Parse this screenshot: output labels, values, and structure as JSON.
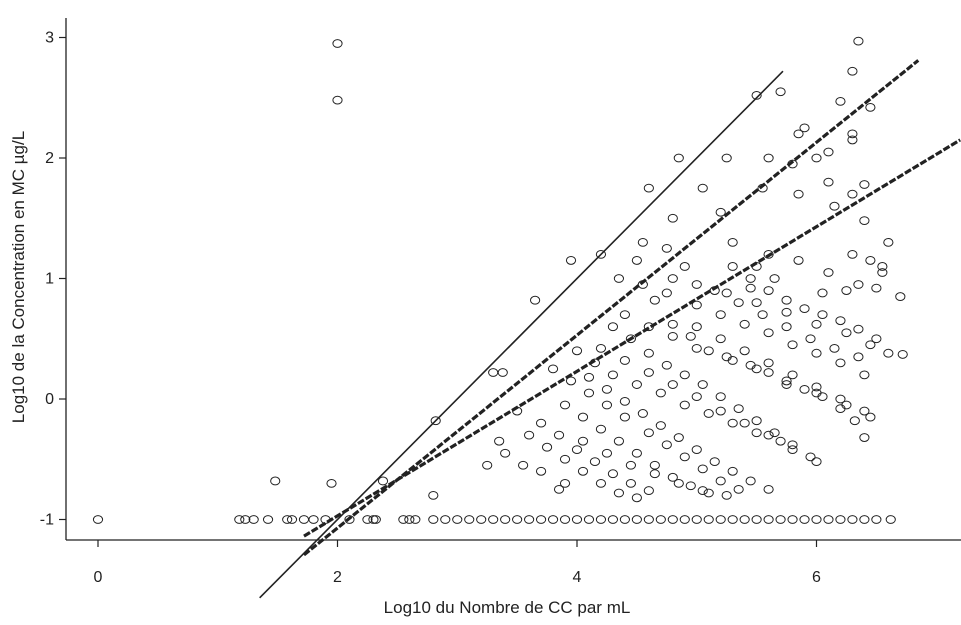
{
  "chart_data": {
    "type": "scatter",
    "title": "",
    "xlabel": "Log10 du Nombre de CC par mL",
    "ylabel": "Log10 de la Concentration en MC µg/L",
    "xlim": [
      -0.8,
      7.2
    ],
    "ylim": [
      -1.17,
      3.17
    ],
    "xticks": [
      0,
      2,
      4,
      6
    ],
    "xtick_labels": [
      "0",
      "2",
      "4",
      "6"
    ],
    "yticks": [
      -1,
      0,
      1,
      2,
      3
    ],
    "ytick_labels": [
      "-1",
      "0",
      "1",
      "2",
      "3"
    ],
    "grid": false,
    "legend": "none",
    "marker": "open-circle",
    "color": "#222222",
    "reference_lines": [
      {
        "style": "solid",
        "slope": 1.0,
        "intercept": -3.0,
        "x_range": [
          1.35,
          5.72
        ]
      },
      {
        "style": "dashed",
        "slope": 0.8,
        "intercept": -2.67,
        "x_range": [
          1.72,
          6.85
        ]
      },
      {
        "style": "dashed",
        "slope": 0.6,
        "intercept": -2.17,
        "x_range": [
          1.72,
          7.2
        ]
      }
    ],
    "points": [
      [
        0.0,
        -1.0
      ],
      [
        1.18,
        -1.0
      ],
      [
        1.23,
        -1.0
      ],
      [
        1.3,
        -1.0
      ],
      [
        1.42,
        -1.0
      ],
      [
        1.58,
        -1.0
      ],
      [
        1.62,
        -1.0
      ],
      [
        1.72,
        -1.0
      ],
      [
        1.8,
        -1.0
      ],
      [
        1.9,
        -1.0
      ],
      [
        2.1,
        -1.0
      ],
      [
        2.25,
        -1.0
      ],
      [
        2.3,
        -1.0
      ],
      [
        2.32,
        -1.0
      ],
      [
        2.55,
        -1.0
      ],
      [
        2.6,
        -1.0
      ],
      [
        2.65,
        -1.0
      ],
      [
        2.8,
        -1.0
      ],
      [
        2.9,
        -1.0
      ],
      [
        3.0,
        -1.0
      ],
      [
        3.1,
        -1.0
      ],
      [
        3.2,
        -1.0
      ],
      [
        3.3,
        -1.0
      ],
      [
        3.4,
        -1.0
      ],
      [
        3.5,
        -1.0
      ],
      [
        3.6,
        -1.0
      ],
      [
        3.7,
        -1.0
      ],
      [
        3.8,
        -1.0
      ],
      [
        3.9,
        -1.0
      ],
      [
        4.0,
        -1.0
      ],
      [
        4.1,
        -1.0
      ],
      [
        4.2,
        -1.0
      ],
      [
        4.3,
        -1.0
      ],
      [
        4.4,
        -1.0
      ],
      [
        4.5,
        -1.0
      ],
      [
        4.6,
        -1.0
      ],
      [
        4.7,
        -1.0
      ],
      [
        4.8,
        -1.0
      ],
      [
        4.9,
        -1.0
      ],
      [
        5.0,
        -1.0
      ],
      [
        5.1,
        -1.0
      ],
      [
        5.2,
        -1.0
      ],
      [
        5.3,
        -1.0
      ],
      [
        5.4,
        -1.0
      ],
      [
        5.5,
        -1.0
      ],
      [
        5.6,
        -1.0
      ],
      [
        5.7,
        -1.0
      ],
      [
        5.8,
        -1.0
      ],
      [
        5.9,
        -1.0
      ],
      [
        6.0,
        -1.0
      ],
      [
        6.1,
        -1.0
      ],
      [
        6.2,
        -1.0
      ],
      [
        6.3,
        -1.0
      ],
      [
        6.4,
        -1.0
      ],
      [
        6.5,
        -1.0
      ],
      [
        6.62,
        -1.0
      ],
      [
        1.48,
        -0.68
      ],
      [
        1.95,
        -0.7
      ],
      [
        2.38,
        -0.68
      ],
      [
        2.0,
        2.95
      ],
      [
        2.0,
        2.48
      ],
      [
        2.8,
        -0.8
      ],
      [
        2.82,
        -0.18
      ],
      [
        3.65,
        0.82
      ],
      [
        3.3,
        0.22
      ],
      [
        3.38,
        0.22
      ],
      [
        3.35,
        -0.35
      ],
      [
        3.4,
        -0.45
      ],
      [
        3.55,
        -0.55
      ],
      [
        3.7,
        -0.6
      ],
      [
        3.85,
        -0.75
      ],
      [
        3.9,
        -0.7
      ],
      [
        3.25,
        -0.55
      ],
      [
        3.95,
        1.15
      ],
      [
        4.2,
        1.2
      ],
      [
        4.35,
        1.0
      ],
      [
        4.5,
        1.15
      ],
      [
        4.55,
        1.3
      ],
      [
        4.6,
        1.75
      ],
      [
        4.8,
        1.5
      ],
      [
        4.75,
        1.25
      ],
      [
        4.9,
        1.1
      ],
      [
        5.05,
        1.75
      ],
      [
        5.2,
        1.55
      ],
      [
        5.3,
        1.3
      ],
      [
        5.5,
        1.1
      ],
      [
        5.5,
        2.52
      ],
      [
        5.7,
        2.55
      ],
      [
        5.9,
        2.25
      ],
      [
        5.85,
        2.2
      ],
      [
        6.1,
        2.05
      ],
      [
        6.3,
        2.15
      ],
      [
        6.3,
        2.2
      ],
      [
        6.35,
        2.97
      ],
      [
        6.3,
        2.72
      ],
      [
        6.45,
        2.42
      ],
      [
        6.2,
        2.47
      ],
      [
        5.55,
        1.75
      ],
      [
        5.85,
        1.7
      ],
      [
        6.1,
        1.8
      ],
      [
        6.3,
        1.7
      ],
      [
        6.4,
        1.48
      ],
      [
        6.4,
        1.78
      ],
      [
        6.6,
        1.3
      ],
      [
        6.7,
        0.85
      ],
      [
        6.6,
        0.38
      ],
      [
        6.72,
        0.37
      ],
      [
        4.85,
        2.0
      ],
      [
        5.25,
        2.0
      ],
      [
        5.6,
        2.0
      ],
      [
        5.8,
        1.95
      ],
      [
        6.0,
        2.0
      ],
      [
        6.15,
        1.6
      ],
      [
        4.65,
        0.82
      ],
      [
        4.8,
        0.62
      ],
      [
        4.95,
        0.52
      ],
      [
        5.1,
        0.4
      ],
      [
        5.3,
        0.32
      ],
      [
        5.45,
        0.28
      ],
      [
        5.6,
        0.22
      ],
      [
        5.75,
        0.12
      ],
      [
        5.9,
        0.08
      ],
      [
        6.05,
        0.02
      ],
      [
        6.2,
        -0.08
      ],
      [
        6.32,
        -0.18
      ],
      [
        6.4,
        -0.32
      ],
      [
        4.3,
        0.6
      ],
      [
        4.45,
        0.5
      ],
      [
        4.6,
        0.38
      ],
      [
        4.75,
        0.28
      ],
      [
        4.9,
        0.2
      ],
      [
        5.05,
        0.12
      ],
      [
        5.2,
        0.02
      ],
      [
        5.35,
        -0.08
      ],
      [
        5.5,
        -0.18
      ],
      [
        5.65,
        -0.28
      ],
      [
        5.8,
        -0.38
      ],
      [
        5.95,
        -0.48
      ],
      [
        4.1,
        0.18
      ],
      [
        4.25,
        0.08
      ],
      [
        4.4,
        -0.02
      ],
      [
        4.55,
        -0.12
      ],
      [
        4.7,
        -0.22
      ],
      [
        4.85,
        -0.32
      ],
      [
        5.0,
        -0.42
      ],
      [
        5.15,
        -0.52
      ],
      [
        5.3,
        -0.6
      ],
      [
        5.45,
        -0.68
      ],
      [
        5.6,
        -0.75
      ],
      [
        3.9,
        -0.05
      ],
      [
        4.05,
        -0.15
      ],
      [
        4.2,
        -0.25
      ],
      [
        4.35,
        -0.35
      ],
      [
        4.5,
        -0.45
      ],
      [
        4.65,
        -0.55
      ],
      [
        4.8,
        -0.65
      ],
      [
        4.95,
        -0.72
      ],
      [
        5.1,
        -0.78
      ],
      [
        4.0,
        0.4
      ],
      [
        4.15,
        0.3
      ],
      [
        4.3,
        0.2
      ],
      [
        4.5,
        0.12
      ],
      [
        4.7,
        0.05
      ],
      [
        4.9,
        -0.05
      ],
      [
        5.1,
        -0.12
      ],
      [
        5.3,
        -0.2
      ],
      [
        5.5,
        -0.28
      ],
      [
        5.7,
        -0.35
      ],
      [
        3.8,
        0.25
      ],
      [
        3.95,
        0.15
      ],
      [
        4.1,
        0.05
      ],
      [
        4.25,
        -0.05
      ],
      [
        4.4,
        -0.15
      ],
      [
        4.6,
        -0.28
      ],
      [
        4.75,
        -0.38
      ],
      [
        4.9,
        -0.48
      ],
      [
        5.05,
        -0.58
      ],
      [
        5.2,
        -0.68
      ],
      [
        5.35,
        -0.75
      ],
      [
        4.55,
        0.95
      ],
      [
        4.75,
        0.88
      ],
      [
        5.0,
        0.78
      ],
      [
        5.2,
        0.7
      ],
      [
        5.4,
        0.62
      ],
      [
        5.6,
        0.55
      ],
      [
        5.8,
        0.45
      ],
      [
        6.0,
        0.38
      ],
      [
        6.2,
        0.3
      ],
      [
        6.4,
        0.2
      ],
      [
        5.3,
        1.1
      ],
      [
        5.45,
        1.0
      ],
      [
        5.6,
        0.9
      ],
      [
        5.75,
        0.82
      ],
      [
        5.9,
        0.75
      ],
      [
        6.05,
        0.7
      ],
      [
        6.2,
        0.65
      ],
      [
        6.35,
        0.58
      ],
      [
        6.5,
        0.5
      ],
      [
        5.15,
        0.9
      ],
      [
        5.35,
        0.8
      ],
      [
        5.55,
        0.7
      ],
      [
        5.75,
        0.6
      ],
      [
        5.95,
        0.5
      ],
      [
        6.15,
        0.42
      ],
      [
        6.35,
        0.35
      ],
      [
        3.6,
        -0.3
      ],
      [
        3.75,
        -0.4
      ],
      [
        3.9,
        -0.5
      ],
      [
        4.05,
        -0.6
      ],
      [
        4.2,
        -0.7
      ],
      [
        4.35,
        -0.78
      ],
      [
        4.5,
        -0.82
      ],
      [
        3.5,
        -0.1
      ],
      [
        3.7,
        -0.2
      ],
      [
        3.85,
        -0.3
      ],
      [
        4.0,
        -0.42
      ],
      [
        4.15,
        -0.52
      ],
      [
        4.3,
        -0.62
      ],
      [
        4.45,
        -0.7
      ],
      [
        4.6,
        -0.76
      ],
      [
        5.0,
        0.6
      ],
      [
        5.2,
        0.5
      ],
      [
        5.4,
        0.4
      ],
      [
        5.6,
        0.3
      ],
      [
        5.8,
        0.2
      ],
      [
        6.0,
        0.1
      ],
      [
        6.2,
        0.0
      ],
      [
        6.4,
        -0.1
      ],
      [
        4.8,
        1.0
      ],
      [
        5.0,
        0.95
      ],
      [
        5.25,
        0.88
      ],
      [
        5.5,
        0.8
      ],
      [
        5.75,
        0.72
      ],
      [
        6.0,
        0.62
      ],
      [
        6.25,
        0.55
      ],
      [
        6.45,
        0.45
      ],
      [
        4.4,
        0.7
      ],
      [
        4.6,
        0.6
      ],
      [
        4.8,
        0.52
      ],
      [
        5.0,
        0.42
      ],
      [
        5.25,
        0.35
      ],
      [
        5.5,
        0.25
      ],
      [
        5.75,
        0.15
      ],
      [
        6.0,
        0.05
      ],
      [
        6.25,
        -0.05
      ],
      [
        6.45,
        -0.15
      ],
      [
        4.2,
        0.42
      ],
      [
        4.4,
        0.32
      ],
      [
        4.6,
        0.22
      ],
      [
        4.8,
        0.12
      ],
      [
        5.0,
        0.02
      ],
      [
        5.2,
        -0.1
      ],
      [
        5.4,
        -0.2
      ],
      [
        5.6,
        -0.3
      ],
      [
        5.8,
        -0.42
      ],
      [
        6.0,
        -0.52
      ],
      [
        4.05,
        -0.35
      ],
      [
        4.25,
        -0.45
      ],
      [
        4.45,
        -0.55
      ],
      [
        4.65,
        -0.62
      ],
      [
        4.85,
        -0.7
      ],
      [
        5.05,
        -0.76
      ],
      [
        5.25,
        -0.8
      ],
      [
        5.6,
        1.2
      ],
      [
        5.85,
        1.15
      ],
      [
        6.1,
        1.05
      ],
      [
        6.35,
        0.95
      ],
      [
        6.55,
        1.05
      ],
      [
        6.5,
        0.92
      ],
      [
        6.25,
        0.9
      ],
      [
        6.05,
        0.88
      ],
      [
        5.65,
        1.0
      ],
      [
        5.45,
        0.92
      ],
      [
        6.3,
        1.2
      ],
      [
        6.45,
        1.15
      ],
      [
        6.55,
        1.1
      ]
    ]
  }
}
